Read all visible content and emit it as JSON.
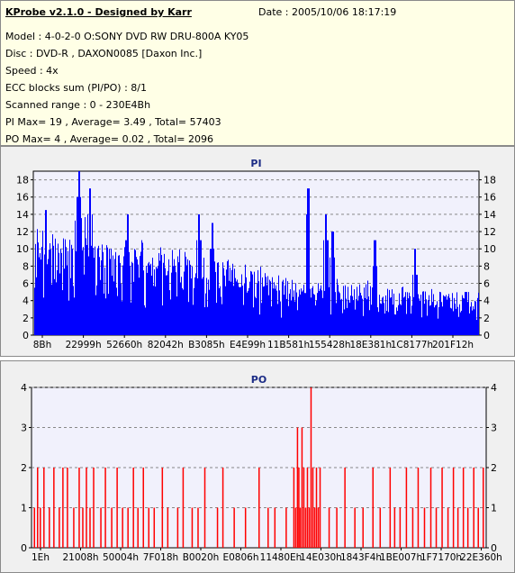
{
  "header": {
    "title": "KProbe v2.1.0 - Designed by Karr",
    "date": "Date : 2005/10/06 18:17:19",
    "lines": [
      "Model : 4-0-2-0 O:SONY    DVD RW DRU-800A  KY05",
      "Disc : DVD-R , DAXON0085 [Daxon Inc.]",
      "Speed : 4x",
      "ECC blocks sum (PI/PO) : 8/1",
      "Scanned range : 0 - 230E4Bh",
      "PI Max= 19 , Average= 3.49 , Total= 57403",
      "PO Max= 4 , Average= 0.02 , Total= 2096"
    ]
  },
  "chart_data": [
    {
      "type": "bar",
      "title": "PI",
      "x_tick_labels": [
        "8Bh",
        "22999h",
        "52660h",
        "82042h",
        "B3085h",
        "E4E99h",
        "11B581h",
        "155428h",
        "18E381h",
        "1C8177h",
        "201F12h"
      ],
      "y_ticks": [
        0,
        2,
        4,
        6,
        8,
        10,
        12,
        14,
        16,
        18
      ],
      "ylim": [
        0,
        19
      ],
      "grid": true,
      "color": "#0000ff",
      "profile": [
        [
          0.0,
          9,
          4,
          12.5
        ],
        [
          0.04,
          10,
          4,
          13
        ],
        [
          0.07,
          10,
          4,
          14.5
        ],
        [
          0.11,
          10,
          4,
          15
        ],
        [
          0.15,
          9,
          4,
          12
        ],
        [
          0.18,
          9,
          4,
          12
        ],
        [
          0.25,
          8,
          3,
          11
        ],
        [
          0.3,
          8,
          3,
          10
        ],
        [
          0.36,
          7,
          3,
          10
        ],
        [
          0.42,
          7,
          3,
          10
        ],
        [
          0.47,
          6,
          3,
          9
        ],
        [
          0.52,
          6,
          2,
          8.5
        ],
        [
          0.58,
          5,
          2,
          8
        ],
        [
          0.64,
          5,
          2,
          7
        ],
        [
          0.7,
          4.5,
          2,
          6.5
        ],
        [
          0.76,
          4.5,
          2,
          6.5
        ],
        [
          0.82,
          4,
          2,
          6
        ],
        [
          0.88,
          4,
          2,
          5.5
        ],
        [
          0.94,
          3.5,
          1.5,
          5
        ],
        [
          1.0,
          3.5,
          1.5,
          5
        ]
      ],
      "spikes": [
        [
          0.025,
          14.5
        ],
        [
          0.1,
          19
        ],
        [
          0.125,
          17
        ],
        [
          0.21,
          14
        ],
        [
          0.37,
          14
        ],
        [
          0.4,
          13
        ],
        [
          0.615,
          17
        ],
        [
          0.655,
          14
        ],
        [
          0.67,
          12
        ],
        [
          0.765,
          11
        ],
        [
          0.855,
          10
        ],
        [
          0.97,
          5
        ]
      ]
    },
    {
      "type": "bar",
      "title": "PO",
      "x_tick_labels": [
        "1Eh",
        "21008h",
        "50004h",
        "7F018h",
        "B0020h",
        "E0806h",
        "11480Eh",
        "14E030h",
        "1843F4h",
        "1BE007h",
        "1F7170h",
        "22E360h"
      ],
      "y_ticks": [
        0,
        1,
        2,
        3,
        4
      ],
      "ylim": [
        0,
        4
      ],
      "grid": true,
      "color": "#ff0000",
      "bars": [
        [
          0.003,
          1
        ],
        [
          0.01,
          2
        ],
        [
          0.016,
          1
        ],
        [
          0.024,
          2
        ],
        [
          0.036,
          1
        ],
        [
          0.046,
          2
        ],
        [
          0.058,
          1
        ],
        [
          0.066,
          2
        ],
        [
          0.076,
          2
        ],
        [
          0.09,
          1
        ],
        [
          0.102,
          2
        ],
        [
          0.11,
          1
        ],
        [
          0.118,
          2
        ],
        [
          0.126,
          1
        ],
        [
          0.134,
          2
        ],
        [
          0.15,
          1
        ],
        [
          0.16,
          2
        ],
        [
          0.174,
          1
        ],
        [
          0.186,
          2
        ],
        [
          0.198,
          1
        ],
        [
          0.21,
          1
        ],
        [
          0.222,
          2
        ],
        [
          0.232,
          1
        ],
        [
          0.244,
          2
        ],
        [
          0.256,
          1
        ],
        [
          0.268,
          1
        ],
        [
          0.286,
          2
        ],
        [
          0.298,
          1
        ],
        [
          0.32,
          1
        ],
        [
          0.332,
          2
        ],
        [
          0.352,
          1
        ],
        [
          0.365,
          1
        ],
        [
          0.38,
          2
        ],
        [
          0.408,
          1
        ],
        [
          0.42,
          2
        ],
        [
          0.445,
          1
        ],
        [
          0.47,
          1
        ],
        [
          0.5,
          2
        ],
        [
          0.52,
          1
        ],
        [
          0.535,
          1
        ],
        [
          0.56,
          1
        ],
        [
          0.577,
          2
        ],
        [
          0.581,
          1
        ],
        [
          0.585,
          3
        ],
        [
          0.588,
          2
        ],
        [
          0.591,
          1
        ],
        [
          0.595,
          3
        ],
        [
          0.599,
          2
        ],
        [
          0.603,
          1
        ],
        [
          0.607,
          2
        ],
        [
          0.611,
          1
        ],
        [
          0.615,
          4
        ],
        [
          0.619,
          2
        ],
        [
          0.623,
          1
        ],
        [
          0.627,
          2
        ],
        [
          0.631,
          1
        ],
        [
          0.635,
          2
        ],
        [
          0.655,
          1
        ],
        [
          0.672,
          1
        ],
        [
          0.69,
          2
        ],
        [
          0.712,
          1
        ],
        [
          0.73,
          1
        ],
        [
          0.752,
          2
        ],
        [
          0.768,
          1
        ],
        [
          0.79,
          2
        ],
        [
          0.8,
          1
        ],
        [
          0.812,
          1
        ],
        [
          0.826,
          2
        ],
        [
          0.84,
          1
        ],
        [
          0.852,
          2
        ],
        [
          0.866,
          1
        ],
        [
          0.88,
          2
        ],
        [
          0.892,
          1
        ],
        [
          0.905,
          2
        ],
        [
          0.918,
          1
        ],
        [
          0.93,
          2
        ],
        [
          0.94,
          1
        ],
        [
          0.952,
          2
        ],
        [
          0.962,
          1
        ],
        [
          0.975,
          2
        ],
        [
          0.985,
          1
        ],
        [
          0.996,
          2
        ]
      ]
    }
  ]
}
